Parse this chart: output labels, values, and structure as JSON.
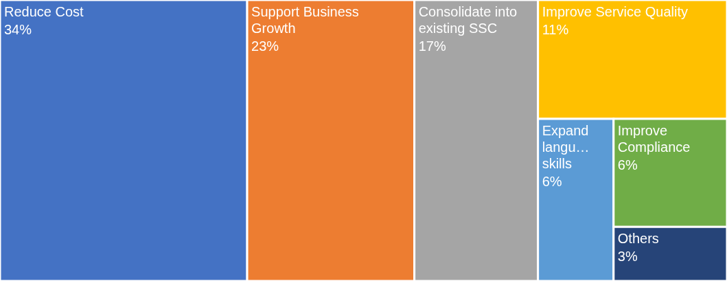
{
  "chart_data": {
    "type": "other",
    "categories": [
      "Reduce Cost",
      "Support Business Growth",
      "Consolidate into existing SSC",
      "Improve Service Quality",
      "Expand langu… skills",
      "Improve Compliance",
      "Others"
    ],
    "values": [
      34,
      23,
      17,
      11,
      6,
      6,
      3
    ],
    "value_labels": [
      "34%",
      "23%",
      "17%",
      "11%",
      "6%",
      "6%",
      "3%"
    ],
    "colors": [
      "#4472c4",
      "#ed7d31",
      "#a5a5a5",
      "#ffc000",
      "#5b9bd5",
      "#70ad47",
      "#264478"
    ]
  }
}
